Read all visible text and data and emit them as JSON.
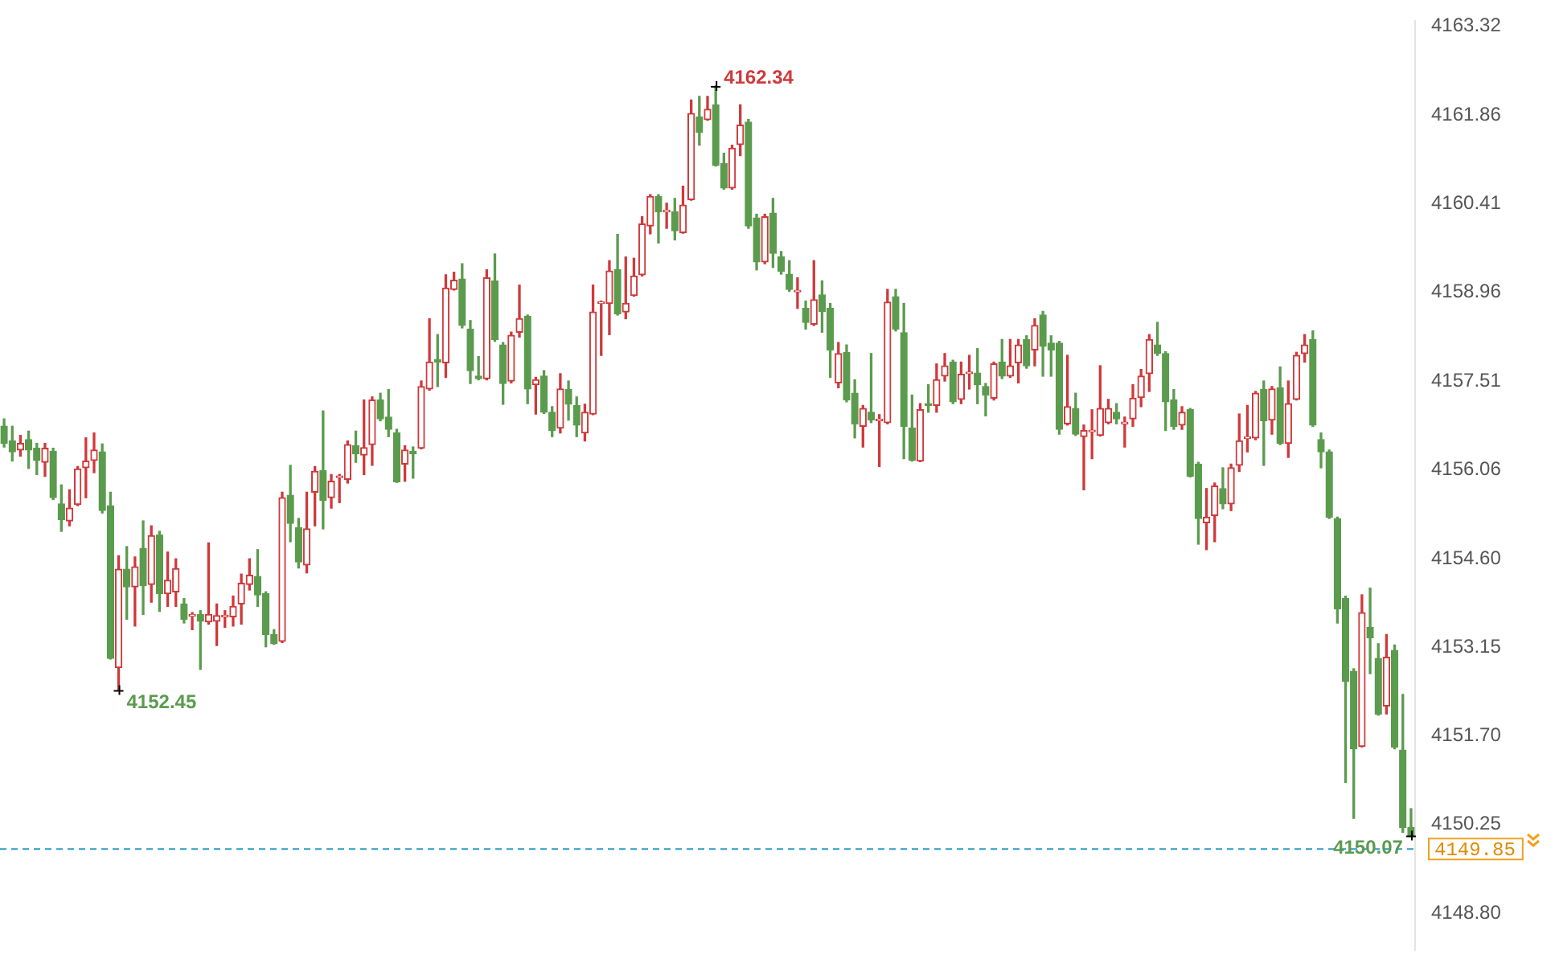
{
  "chart_data": {
    "type": "candlestick",
    "categories": [
      null,
      null,
      null,
      null,
      null,
      null,
      null,
      null,
      null,
      null,
      null,
      null,
      null,
      null,
      null,
      null,
      null,
      null,
      null,
      null,
      null,
      null,
      null,
      null,
      null,
      null,
      null,
      null,
      null,
      null,
      null,
      null,
      null,
      null,
      null,
      null,
      null,
      null,
      null,
      null,
      null,
      null,
      null,
      null,
      null,
      null,
      null,
      null,
      null,
      null,
      null,
      null,
      null,
      null,
      null,
      null,
      null,
      null,
      null,
      null,
      null,
      null,
      null,
      null,
      null,
      null,
      null,
      null,
      null,
      null,
      null,
      null,
      null,
      null,
      null,
      null,
      null,
      null,
      null,
      null,
      null,
      null,
      null,
      null,
      null,
      null,
      null,
      null,
      null,
      null,
      null,
      null,
      null,
      null,
      null,
      null,
      null,
      null,
      null,
      null,
      null,
      null,
      null,
      null,
      null,
      null,
      null,
      null,
      null,
      null,
      null,
      null,
      null,
      null,
      null,
      null,
      null,
      null,
      null,
      null,
      null,
      null,
      null,
      null,
      null,
      null,
      null,
      null,
      null,
      null,
      null,
      null,
      null,
      null,
      null,
      null,
      null,
      null,
      null,
      null,
      null,
      null,
      null,
      null,
      null,
      null,
      null,
      null,
      null,
      null,
      null,
      null,
      null,
      null,
      null,
      null,
      null,
      null,
      null,
      null,
      null,
      null,
      null,
      null,
      null,
      null,
      null,
      null,
      null,
      null,
      null,
      null,
      null
    ],
    "ohlc": [
      [
        4156.77,
        4156.89,
        4156.43,
        4156.49
      ],
      [
        4156.53,
        4156.77,
        4156.2,
        4156.35
      ],
      [
        4156.38,
        4156.62,
        4156.28,
        4156.49
      ],
      [
        4156.55,
        4156.69,
        4156.08,
        4156.38
      ],
      [
        4156.41,
        4156.49,
        4155.98,
        4156.21
      ],
      [
        4156.18,
        4156.49,
        4155.95,
        4156.41
      ],
      [
        4156.36,
        4156.41,
        4155.57,
        4155.6
      ],
      [
        4155.5,
        4155.81,
        4155.05,
        4155.24
      ],
      [
        4155.22,
        4155.73,
        4155.14,
        4155.43
      ],
      [
        4155.49,
        4156.11,
        4155.47,
        4156.07
      ],
      [
        4156.09,
        4156.58,
        4155.6,
        4156.2
      ],
      [
        4156.21,
        4156.66,
        4156.01,
        4156.38
      ],
      [
        4156.35,
        4156.48,
        4155.35,
        4155.39
      ],
      [
        4155.47,
        4155.69,
        4152.96,
        4152.97
      ],
      [
        4152.82,
        4154.65,
        4152.45,
        4154.43
      ],
      [
        4154.43,
        4154.8,
        4153.61,
        4154.14
      ],
      [
        4154.14,
        4154.63,
        4153.5,
        4154.47
      ],
      [
        4154.77,
        4155.22,
        4153.69,
        4154.16
      ],
      [
        4154.18,
        4155.14,
        4153.89,
        4154.98
      ],
      [
        4154.99,
        4155.05,
        4153.74,
        4154.03
      ],
      [
        4154.03,
        4154.71,
        4153.82,
        4154.25
      ],
      [
        4154.06,
        4154.6,
        4153.82,
        4154.44
      ],
      [
        4153.86,
        4153.95,
        4153.55,
        4153.61
      ],
      [
        4153.66,
        4153.72,
        4153.44,
        4153.69
      ],
      [
        4153.69,
        4153.75,
        4152.79,
        4153.58
      ],
      [
        4153.57,
        4154.86,
        4153.53,
        4153.69
      ],
      [
        4153.58,
        4153.86,
        4153.18,
        4153.67
      ],
      [
        4153.65,
        4153.75,
        4153.48,
        4153.66
      ],
      [
        4153.65,
        4153.99,
        4153.5,
        4153.82
      ],
      [
        4153.86,
        4154.35,
        4153.53,
        4154.2
      ],
      [
        4154.18,
        4154.6,
        4154.09,
        4154.33
      ],
      [
        4154.31,
        4154.75,
        4153.82,
        4154.01
      ],
      [
        4154.03,
        4154.06,
        4153.16,
        4153.36
      ],
      [
        4153.36,
        4153.44,
        4153.2,
        4153.21
      ],
      [
        4153.25,
        4155.69,
        4153.23,
        4155.6
      ],
      [
        4155.64,
        4156.13,
        4154.88,
        4155.18
      ],
      [
        4155.11,
        4155.26,
        4154.45,
        4154.55
      ],
      [
        4154.5,
        4155.69,
        4154.37,
        4155.09
      ],
      [
        4155.69,
        4156.11,
        4155.14,
        4156.03
      ],
      [
        4156.04,
        4157.02,
        4155.09,
        4155.56
      ],
      [
        4155.6,
        4155.98,
        4155.43,
        4155.87
      ],
      [
        4155.93,
        4155.98,
        4155.52,
        4155.94
      ],
      [
        4155.9,
        4156.53,
        4155.84,
        4156.47
      ],
      [
        4156.45,
        4156.69,
        4156.18,
        4156.32
      ],
      [
        4156.3,
        4157.2,
        4155.98,
        4156.42
      ],
      [
        4156.47,
        4157.25,
        4156.13,
        4157.2
      ],
      [
        4157.2,
        4157.31,
        4156.86,
        4156.89
      ],
      [
        4156.92,
        4157.37,
        4156.6,
        4156.72
      ],
      [
        4156.66,
        4156.72,
        4155.85,
        4155.86
      ],
      [
        4156.15,
        4156.45,
        4155.87,
        4156.38
      ],
      [
        4156.36,
        4156.43,
        4155.92,
        4156.32
      ],
      [
        4156.41,
        4157.51,
        4156.4,
        4157.42
      ],
      [
        4157.38,
        4158.53,
        4157.36,
        4157.82
      ],
      [
        4157.86,
        4158.27,
        4157.42,
        4157.82
      ],
      [
        4157.81,
        4159.25,
        4157.57,
        4159.03
      ],
      [
        4159.01,
        4159.29,
        4159.0,
        4159.16
      ],
      [
        4159.18,
        4159.43,
        4158.38,
        4158.42
      ],
      [
        4158.36,
        4158.5,
        4157.47,
        4157.68
      ],
      [
        4157.59,
        4157.91,
        4157.53,
        4157.55
      ],
      [
        4157.55,
        4159.33,
        4157.53,
        4159.2
      ],
      [
        4159.15,
        4159.59,
        4158.16,
        4158.19
      ],
      [
        4158.1,
        4158.14,
        4157.13,
        4157.47
      ],
      [
        4157.51,
        4158.31,
        4157.48,
        4158.26
      ],
      [
        4158.31,
        4159.08,
        4158.23,
        4158.53
      ],
      [
        4158.57,
        4158.59,
        4157.14,
        4157.38
      ],
      [
        4157.45,
        4157.57,
        4156.97,
        4157.53
      ],
      [
        4157.59,
        4157.68,
        4156.98,
        4157.0
      ],
      [
        4157.0,
        4157.09,
        4156.6,
        4156.7
      ],
      [
        4156.74,
        4157.63,
        4156.66,
        4157.38
      ],
      [
        4157.37,
        4157.51,
        4156.87,
        4157.13
      ],
      [
        4157.11,
        4157.25,
        4156.6,
        4156.79
      ],
      [
        4156.66,
        4157.13,
        4156.53,
        4157.0
      ],
      [
        4156.97,
        4159.08,
        4156.96,
        4158.64
      ],
      [
        4158.78,
        4158.82,
        4157.93,
        4158.79
      ],
      [
        4158.78,
        4159.48,
        4158.27,
        4159.31
      ],
      [
        4159.33,
        4159.91,
        4158.59,
        4158.61
      ],
      [
        4158.64,
        4159.54,
        4158.53,
        4158.78
      ],
      [
        4158.91,
        4159.52,
        4158.9,
        4159.23
      ],
      [
        4159.25,
        4160.2,
        4159.23,
        4160.08
      ],
      [
        4160.05,
        4160.56,
        4159.92,
        4160.53
      ],
      [
        4160.53,
        4160.56,
        4159.77,
        4160.28
      ],
      [
        4160.28,
        4160.42,
        4160.01,
        4160.29
      ],
      [
        4160.28,
        4160.5,
        4159.82,
        4159.97
      ],
      [
        4159.94,
        4160.7,
        4159.93,
        4160.39
      ],
      [
        4160.48,
        4162.11,
        4160.47,
        4161.89
      ],
      [
        4161.83,
        4162.17,
        4161.37,
        4161.58
      ],
      [
        4161.79,
        4162.17,
        4161.78,
        4161.96
      ],
      [
        4162.03,
        4162.34,
        4161.03,
        4161.04
      ],
      [
        4161.07,
        4161.24,
        4160.65,
        4160.67
      ],
      [
        4160.67,
        4161.37,
        4160.65,
        4161.32
      ],
      [
        4161.38,
        4162.03,
        4161.2,
        4161.7
      ],
      [
        4161.75,
        4161.79,
        4160.01,
        4160.05
      ],
      [
        4160.18,
        4160.24,
        4159.33,
        4159.46
      ],
      [
        4159.46,
        4160.24,
        4159.43,
        4160.2
      ],
      [
        4160.26,
        4160.5,
        4159.37,
        4159.6
      ],
      [
        4159.54,
        4159.63,
        4159.26,
        4159.31
      ],
      [
        4159.26,
        4159.48,
        4158.98,
        4159.01
      ],
      [
        4158.97,
        4159.2,
        4158.7,
        4158.98
      ],
      [
        4158.7,
        4158.82,
        4158.36,
        4158.47
      ],
      [
        4158.44,
        4159.48,
        4158.42,
        4158.84
      ],
      [
        4158.92,
        4159.15,
        4158.31,
        4158.65
      ],
      [
        4158.7,
        4158.78,
        4157.57,
        4158.02
      ],
      [
        4157.48,
        4158.14,
        4157.4,
        4157.96
      ],
      [
        4157.98,
        4158.1,
        4157.17,
        4157.2
      ],
      [
        4157.31,
        4157.53,
        4156.58,
        4156.81
      ],
      [
        4156.77,
        4157.11,
        4156.43,
        4157.06
      ],
      [
        4157.0,
        4157.96,
        4156.83,
        4156.87
      ],
      [
        4156.86,
        4156.96,
        4156.11,
        4156.87
      ],
      [
        4156.83,
        4159.01,
        4156.81,
        4158.8
      ],
      [
        4158.89,
        4159.01,
        4158.33,
        4158.36
      ],
      [
        4158.3,
        4158.78,
        4156.24,
        4156.77
      ],
      [
        4156.74,
        4157.28,
        4156.2,
        4156.21
      ],
      [
        4156.2,
        4157.14,
        4156.19,
        4157.04
      ],
      [
        4157.14,
        4157.45,
        4157.0,
        4157.11
      ],
      [
        4157.11,
        4157.79,
        4157.0,
        4157.53
      ],
      [
        4157.59,
        4157.96,
        4157.51,
        4157.76
      ],
      [
        4157.82,
        4157.85,
        4157.14,
        4157.17
      ],
      [
        4157.21,
        4157.82,
        4157.14,
        4157.62
      ],
      [
        4157.63,
        4157.93,
        4157.38,
        4157.64
      ],
      [
        4157.64,
        4158.04,
        4157.14,
        4157.45
      ],
      [
        4157.42,
        4157.47,
        4156.94,
        4157.28
      ],
      [
        4157.23,
        4157.82,
        4157.2,
        4157.79
      ],
      [
        4157.82,
        4158.19,
        4157.55,
        4157.59
      ],
      [
        4157.59,
        4158.19,
        4157.57,
        4157.76
      ],
      [
        4157.81,
        4158.19,
        4157.48,
        4158.1
      ],
      [
        4158.19,
        4158.25,
        4157.72,
        4157.76
      ],
      [
        4158.02,
        4158.53,
        4157.76,
        4158.42
      ],
      [
        4158.59,
        4158.65,
        4157.59,
        4158.08
      ],
      [
        4158.13,
        4158.25,
        4157.59,
        4158.02
      ],
      [
        4158.13,
        4158.16,
        4156.64,
        4156.72
      ],
      [
        4156.81,
        4157.93,
        4156.79,
        4157.09
      ],
      [
        4157.06,
        4157.31,
        4156.62,
        4156.64
      ],
      [
        4156.6,
        4156.79,
        4155.73,
        4156.7
      ],
      [
        4156.68,
        4157.04,
        4156.24,
        4156.69
      ],
      [
        4156.62,
        4157.76,
        4156.61,
        4157.06
      ],
      [
        4156.83,
        4157.21,
        4156.81,
        4157.06
      ],
      [
        4157.0,
        4157.14,
        4156.81,
        4156.89
      ],
      [
        4156.81,
        4156.92,
        4156.43,
        4156.82
      ],
      [
        4156.89,
        4157.45,
        4156.77,
        4157.23
      ],
      [
        4157.24,
        4157.7,
        4157.09,
        4157.59
      ],
      [
        4157.63,
        4158.27,
        4157.34,
        4158.19
      ],
      [
        4158.1,
        4158.47,
        4157.93,
        4157.96
      ],
      [
        4157.96,
        4157.99,
        4156.7,
        4157.17
      ],
      [
        4157.2,
        4157.37,
        4156.72,
        4156.77
      ],
      [
        4156.79,
        4157.09,
        4156.72,
        4157.0
      ],
      [
        4157.04,
        4157.06,
        4155.94,
        4155.95
      ],
      [
        4156.15,
        4156.18,
        4154.84,
        4155.26
      ],
      [
        4155.19,
        4155.75,
        4154.75,
        4155.28
      ],
      [
        4155.31,
        4155.84,
        4154.88,
        4155.79
      ],
      [
        4155.75,
        4156.09,
        4155.42,
        4155.5
      ],
      [
        4155.5,
        4156.15,
        4155.39,
        4156.09
      ],
      [
        4156.13,
        4156.97,
        4156.03,
        4156.53
      ],
      [
        4156.57,
        4157.11,
        4156.35,
        4156.58
      ],
      [
        4156.58,
        4157.34,
        4156.55,
        4157.31
      ],
      [
        4157.37,
        4157.51,
        4156.13,
        4156.86
      ],
      [
        4156.87,
        4157.42,
        4156.64,
        4157.38
      ],
      [
        4157.4,
        4157.74,
        4156.47,
        4156.49
      ],
      [
        4156.49,
        4157.51,
        4156.26,
        4157.14
      ],
      [
        4157.21,
        4157.98,
        4157.2,
        4157.93
      ],
      [
        4157.96,
        4158.27,
        4157.82,
        4158.1
      ],
      [
        4158.19,
        4158.33,
        4156.77,
        4156.79
      ],
      [
        4156.55,
        4156.66,
        4156.09,
        4156.35
      ],
      [
        4156.35,
        4156.38,
        4155.26,
        4155.28
      ],
      [
        4155.26,
        4155.28,
        4153.55,
        4153.78
      ],
      [
        4153.95,
        4153.99,
        4150.94,
        4152.59
      ],
      [
        4152.76,
        4152.8,
        4150.35,
        4151.49
      ],
      [
        4151.53,
        4154.01,
        4151.52,
        4153.72
      ],
      [
        4153.48,
        4154.12,
        4152.72,
        4153.31
      ],
      [
        4152.97,
        4153.21,
        4152.04,
        4152.06
      ],
      [
        4152.19,
        4153.36,
        4152.06,
        4152.99
      ],
      [
        4153.1,
        4153.19,
        4151.49,
        4151.52
      ],
      [
        4151.47,
        4152.38,
        4150.12,
        4150.2
      ],
      [
        4150.2,
        4150.51,
        4150.07,
        4150.07
      ]
    ],
    "ylim": [
      4148.2,
      4163.4
    ],
    "yticks": [
      {
        "value": 4163.32,
        "label": "4163.32"
      },
      {
        "value": 4161.86,
        "label": "4161.86"
      },
      {
        "value": 4160.41,
        "label": "4160.41"
      },
      {
        "value": 4158.96,
        "label": "4158.96"
      },
      {
        "value": 4157.51,
        "label": "4157.51"
      },
      {
        "value": 4156.06,
        "label": "4156.06"
      },
      {
        "value": 4154.6,
        "label": "4154.60"
      },
      {
        "value": 4153.15,
        "label": "4153.15"
      },
      {
        "value": 4151.7,
        "label": "4151.70"
      },
      {
        "value": 4150.25,
        "label": "4150.25"
      },
      {
        "value": 4148.8,
        "label": "4148.80"
      }
    ],
    "tick_labels": "y",
    "ref_lines": [
      {
        "axis": "y",
        "value": 4149.85,
        "label": "4149.85",
        "color": "#2a9bc4",
        "line_style": "dashed"
      }
    ],
    "annotations": [
      "4162.34",
      "4152.45",
      "4150.07"
    ],
    "legend": false,
    "grid": false
  }
}
